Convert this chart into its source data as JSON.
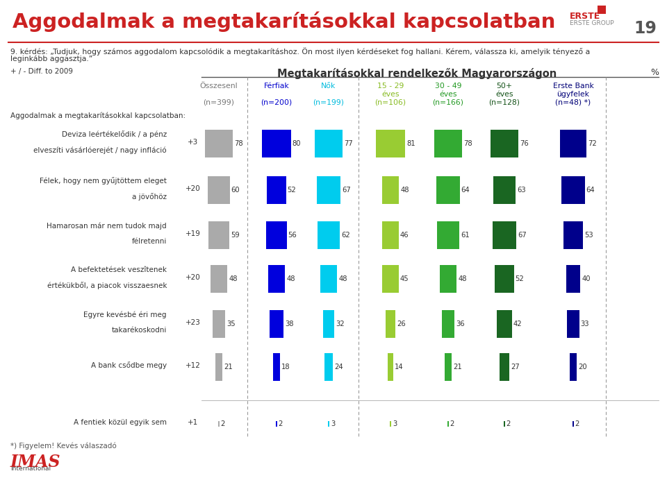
{
  "title": "Aggodalmak a megtakarításokkal kapcsolatban",
  "page_number": "19",
  "subtitle_1": "9. kérdés: „Tudjuk, hogy számos aggodalom kapcsolódik a megtakarításhoz. Ön most ilyen kérdéseket fog hallani. Kérem, válassza ki, amelyik tényező a",
  "subtitle_2": "leginkább aggasztja.”",
  "diff_label": "+ / - Diff. to 2009",
  "section_title": "Megtakarításokkal rendelkezők Magyarországon",
  "percent_label": "%",
  "subsection_label": "Aggodalmak a megtakarításokkal kapcsolatban:",
  "col_headers": [
    [
      "Összesenl",
      "",
      "(n=399)"
    ],
    [
      "Férfiak",
      "",
      "(n=200)"
    ],
    [
      "Nők",
      "",
      "(n=199)"
    ],
    [
      "15 - 29",
      "éves",
      "(n=106)"
    ],
    [
      "30 - 49",
      "éves",
      "(n=166)"
    ],
    [
      "50+",
      "éves",
      "(n=128)"
    ],
    [
      "Erste Bank",
      "ügyfelek",
      "(n=48) *)"
    ]
  ],
  "col_text_colors": [
    "#777777",
    "#0000cc",
    "#00bbdd",
    "#88bb22",
    "#229922",
    "#145218",
    "#000077"
  ],
  "bar_colors": [
    "#aaaaaa",
    "#0000dd",
    "#00ccee",
    "#99cc33",
    "#33aa33",
    "#1a6622",
    "#00008b"
  ],
  "rows": [
    {
      "label_1": "Deviza leértékelődik / a pénz",
      "label_2": "elveszíti vásárlóerejét / nagy infláció",
      "values": [
        78,
        80,
        77,
        81,
        78,
        76,
        72
      ],
      "diff": "+3"
    },
    {
      "label_1": "Félek, hogy nem gyűjtöttem eleget",
      "label_2": "a jövőhöz",
      "values": [
        60,
        52,
        67,
        48,
        64,
        63,
        64
      ],
      "diff": "+20"
    },
    {
      "label_1": "Hamarosan már nem tudok majd",
      "label_2": "félretenni",
      "values": [
        59,
        56,
        62,
        46,
        61,
        67,
        53
      ],
      "diff": "+19"
    },
    {
      "label_1": "A befektetések veszîtenek",
      "label_2": "értékükből, a piacok visszaesnek",
      "values": [
        48,
        48,
        48,
        45,
        48,
        52,
        40
      ],
      "diff": "+20"
    },
    {
      "label_1": "Egyre kevésbé éri meg",
      "label_2": "takarékoskodni",
      "values": [
        35,
        38,
        32,
        26,
        36,
        42,
        33
      ],
      "diff": "+23"
    },
    {
      "label_1": "A bank csődbe megy",
      "label_2": "",
      "values": [
        21,
        18,
        24,
        14,
        21,
        27,
        20
      ],
      "diff": "+12"
    },
    {
      "label_1": "A fentiek közül egyik sem",
      "label_2": "",
      "values": [
        2,
        2,
        3,
        3,
        2,
        2,
        2
      ],
      "diff": "+1"
    }
  ],
  "footnote": "*) Figyelem! Kevés válaszadó",
  "background_color": "#ffffff"
}
